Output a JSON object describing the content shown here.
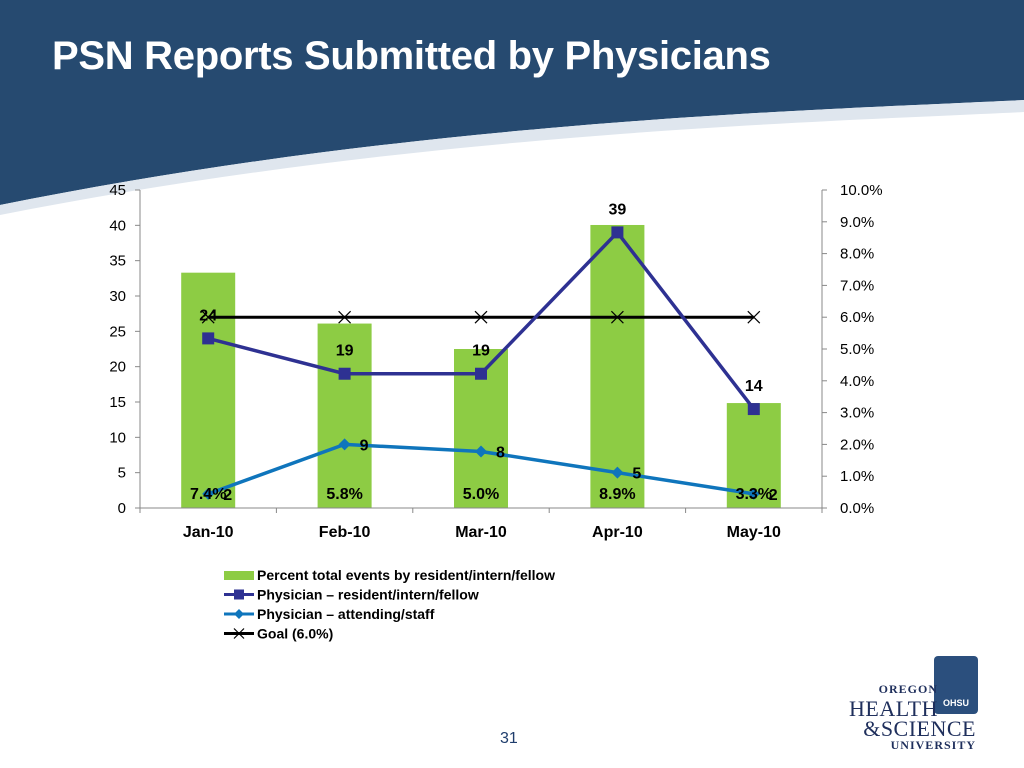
{
  "slide": {
    "title": "PSN Reports Submitted by Physicians",
    "page_number": "31",
    "header_color": "#264a70"
  },
  "logo": {
    "line1": "OREGON",
    "line2": "HEALTH",
    "line3": "&SCIENCE",
    "line4": "UNIVERSITY",
    "badge_text": "OHSU"
  },
  "chart_data": {
    "type": "bar",
    "categories": [
      "Jan-10",
      "Feb-10",
      "Mar-10",
      "Apr-10",
      "May-10"
    ],
    "y_axis": {
      "min": 0,
      "max": 45,
      "step": 5,
      "ticks": [
        "0",
        "5",
        "10",
        "15",
        "20",
        "25",
        "30",
        "35",
        "40",
        "45"
      ]
    },
    "y2_axis": {
      "min": 0,
      "max": 0.1,
      "step": 0.01,
      "ticks": [
        "0.0%",
        "1.0%",
        "2.0%",
        "3.0%",
        "4.0%",
        "5.0%",
        "6.0%",
        "7.0%",
        "8.0%",
        "9.0%",
        "10.0%"
      ]
    },
    "series": [
      {
        "name": "Percent total events by resident/intern/fellow",
        "type": "bar",
        "axis": "secondary",
        "color": "#8dcc44",
        "values": [
          0.074,
          0.058,
          0.05,
          0.089,
          0.033
        ],
        "labels": [
          "7.4%",
          "5.8%",
          "5.0%",
          "8.9%",
          "3.3%"
        ]
      },
      {
        "name": "Physician – resident/intern/fellow",
        "type": "line",
        "axis": "primary",
        "color": "#2e3192",
        "marker": "square",
        "values": [
          24,
          19,
          19,
          39,
          14
        ],
        "labels": [
          "24",
          "19",
          "19",
          "39",
          "14"
        ]
      },
      {
        "name": "Physician – attending/staff",
        "type": "line",
        "axis": "primary",
        "color": "#0f75bc",
        "marker": "diamond",
        "values": [
          2,
          9,
          8,
          5,
          2
        ],
        "labels": [
          "2",
          "9",
          "8",
          "5",
          "2"
        ]
      },
      {
        "name": "Goal (6.0%)",
        "type": "line",
        "axis": "secondary",
        "color": "#000000",
        "marker": "x",
        "values": [
          0.06,
          0.06,
          0.06,
          0.06,
          0.06
        ]
      }
    ],
    "grid": false,
    "legend_position": "bottom"
  }
}
